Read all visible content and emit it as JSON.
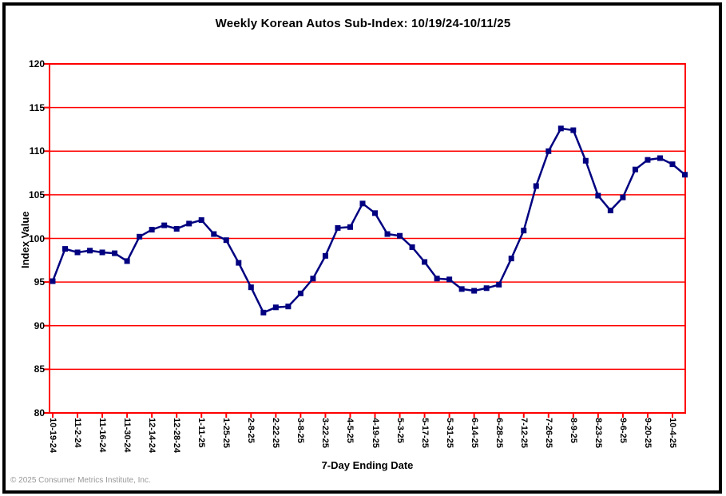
{
  "header": {
    "title": "Weekly Korean Autos Sub-Index: 10/19/24-10/11/25"
  },
  "footer": {
    "copyright": "© 2025 Consumer Metrics Institute, Inc."
  },
  "chart_data": {
    "type": "line",
    "title": "Weekly Korean Autos Sub-Index: 10/19/24-10/11/25",
    "xlabel": "7-Day Ending Date",
    "ylabel": "Index Value",
    "ylim": [
      80,
      120
    ],
    "ytick_step": 5,
    "ytick_labels": [
      "120",
      "115",
      "110",
      "105",
      "100",
      "95",
      "90",
      "85",
      "80"
    ],
    "grid": "horizontal only",
    "legend": "none",
    "marker": "square",
    "colors": {
      "line": "#000080",
      "marker": "#000080",
      "grid": "#ff0000",
      "axis": "#ff0000",
      "text": "#000000",
      "footer_text": "#989898",
      "frame": "#000000",
      "background": "#ffffff"
    },
    "categories": [
      "10-19-24",
      "10-26-24",
      "11-2-24",
      "11-9-24",
      "11-16-24",
      "11-23-24",
      "11-30-24",
      "12-7-24",
      "12-14-24",
      "12-21-24",
      "12-28-24",
      "1-4-25",
      "1-11-25",
      "1-18-25",
      "1-25-25",
      "2-1-25",
      "2-8-25",
      "2-15-25",
      "2-22-25",
      "3-1-25",
      "3-8-25",
      "3-15-25",
      "3-22-25",
      "3-29-25",
      "4-5-25",
      "4-12-25",
      "4-19-25",
      "4-26-25",
      "5-3-25",
      "5-10-25",
      "5-17-25",
      "5-24-25",
      "5-31-25",
      "6-7-25",
      "6-14-25",
      "6-21-25",
      "6-28-25",
      "7-5-25",
      "7-12-25",
      "7-19-25",
      "7-26-25",
      "8-2-25",
      "8-9-25",
      "8-16-25",
      "8-23-25",
      "8-30-25",
      "9-6-25",
      "9-13-25",
      "9-20-25",
      "9-27-25",
      "10-4-25",
      "10-11-25"
    ],
    "xtick_labels": [
      "10-19-24",
      "11-2-24",
      "11-16-24",
      "11-30-24",
      "12-14-24",
      "12-28-24",
      "1-11-25",
      "1-25-25",
      "2-8-25",
      "2-22-25",
      "3-8-25",
      "3-22-25",
      "4-5-25",
      "4-19-25",
      "5-3-25",
      "5-17-25",
      "5-31-25",
      "6-14-25",
      "6-28-25",
      "7-12-25",
      "7-26-25",
      "8-9-25",
      "8-23-25",
      "9-6-25",
      "9-20-25",
      "10-4-25"
    ],
    "xtick_every": 2,
    "values": [
      95.1,
      98.8,
      98.4,
      98.6,
      98.4,
      98.3,
      97.4,
      100.2,
      101.0,
      101.5,
      101.1,
      101.7,
      102.1,
      100.5,
      99.8,
      97.2,
      94.4,
      91.5,
      92.1,
      92.2,
      93.7,
      95.4,
      98.0,
      101.2,
      101.3,
      104.0,
      102.9,
      100.5,
      100.3,
      99.0,
      97.3,
      95.4,
      95.3,
      94.2,
      94.0,
      94.3,
      94.7,
      97.7,
      100.9,
      106.0,
      110.0,
      112.6,
      112.4,
      108.9,
      104.9,
      103.2,
      104.7,
      107.9,
      109.0,
      109.2,
      108.5,
      107.3
    ]
  }
}
